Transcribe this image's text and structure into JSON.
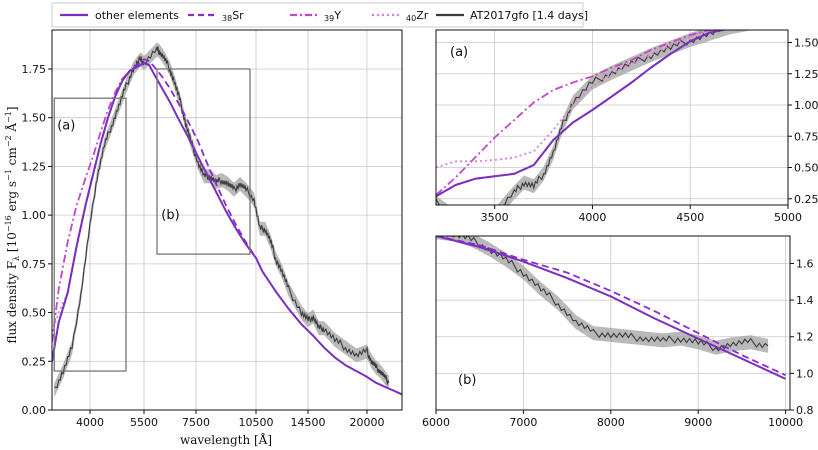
{
  "legend": {
    "entries": [
      {
        "label": "other elements",
        "color": "#7b2fc0",
        "dash": "solid"
      },
      {
        "label": "38Sr",
        "sub": "38",
        "name": "Sr",
        "color": "#8a2bd0",
        "dash": "dashed"
      },
      {
        "label": "39Y",
        "sub": "39",
        "name": "Y",
        "color": "#c147c8",
        "dash": "dashdot"
      },
      {
        "label": "40Zr",
        "sub": "40",
        "name": "Zr",
        "color": "#e07be0",
        "dash": "dotted"
      },
      {
        "label": "AT2017gfo [1.4 days]",
        "color": "#3a3a3a",
        "dash": "solid"
      }
    ]
  },
  "chart_data": [
    {
      "id": "main",
      "type": "line",
      "xlabel": "wavelength [Å]",
      "ylabel": "flux density F_λ [10^-16 erg s^-1 cm^-2 Å^-1]",
      "x_ticks": [
        {
          "label": "4000",
          "wl": 4000
        },
        {
          "label": "5500",
          "wl": 5500
        },
        {
          "label": "7500",
          "wl": 7500
        },
        {
          "label": "10500",
          "wl": 10500
        },
        {
          "label": "14500",
          "wl": 14500
        },
        {
          "label": "20000",
          "wl": 20000
        }
      ],
      "xlim": [
        3150,
        24000
      ],
      "ylim": [
        0.0,
        1.95
      ],
      "y_ticks": [
        "0.00",
        "0.25",
        "0.50",
        "0.75",
        "1.00",
        "1.25",
        "1.50",
        "1.75"
      ],
      "grid": true,
      "annotations": [
        {
          "text": "(a)",
          "x": 3200,
          "y": 1.44
        },
        {
          "text": "(b)",
          "x": 6050,
          "y": 0.98
        }
      ],
      "boxes": [
        {
          "label": "(a)",
          "x": [
            3200,
            5000
          ],
          "y": [
            0.2,
            1.6
          ]
        },
        {
          "label": "(b)",
          "x": [
            6000,
            10200
          ],
          "y": [
            0.8,
            1.75
          ]
        }
      ],
      "series": [
        {
          "name": "other elements",
          "x": [
            3150,
            3300,
            3500,
            3700,
            3900,
            4100,
            4300,
            4500,
            4700,
            4900,
            5100,
            5300,
            5500,
            5700,
            5900,
            6200,
            6500,
            6800,
            7200,
            7600,
            8000,
            8500,
            9000,
            9500,
            10000,
            10500,
            11000,
            12000,
            13000,
            14000,
            15000,
            16000,
            17000,
            18000,
            19000,
            20000,
            21000,
            22000,
            23000,
            24000
          ],
          "y": [
            0.25,
            0.45,
            0.6,
            0.84,
            1.05,
            1.22,
            1.37,
            1.5,
            1.61,
            1.69,
            1.74,
            1.76,
            1.78,
            1.77,
            1.72,
            1.65,
            1.58,
            1.5,
            1.4,
            1.3,
            1.22,
            1.12,
            1.02,
            0.93,
            0.85,
            0.78,
            0.71,
            0.61,
            0.52,
            0.44,
            0.38,
            0.32,
            0.27,
            0.23,
            0.2,
            0.17,
            0.14,
            0.12,
            0.1,
            0.08
          ]
        },
        {
          "name": "38Sr",
          "x": [
            3150,
            3300,
            3500,
            3700,
            3900,
            4100,
            4300,
            4500,
            4700,
            4900,
            5100,
            5300,
            5500,
            5700,
            5900,
            6200,
            6500,
            6800,
            7200,
            7600,
            8000,
            8500,
            9000,
            9500,
            10000,
            10500
          ],
          "y": [
            0.25,
            0.45,
            0.6,
            0.84,
            1.05,
            1.22,
            1.37,
            1.5,
            1.61,
            1.69,
            1.74,
            1.77,
            1.8,
            1.79,
            1.76,
            1.71,
            1.65,
            1.58,
            1.48,
            1.38,
            1.28,
            1.16,
            1.05,
            0.95,
            0.86,
            0.78
          ]
        },
        {
          "name": "39Y",
          "x": [
            3150,
            3300,
            3500,
            3700,
            3900,
            4100,
            4300,
            4500,
            4700,
            4900,
            5100,
            5300,
            5500,
            5700
          ],
          "y": [
            0.35,
            0.62,
            0.86,
            1.05,
            1.19,
            1.31,
            1.43,
            1.54,
            1.63,
            1.7,
            1.74,
            1.76,
            1.78,
            1.77
          ]
        },
        {
          "name": "40Zr",
          "x": [
            3150,
            3300,
            3500,
            3700,
            3900,
            4100,
            4300,
            4500,
            4700,
            4900,
            5100
          ],
          "y": [
            0.4,
            0.5,
            0.6,
            0.84,
            1.05,
            1.22,
            1.37,
            1.5,
            1.61,
            1.69,
            1.74
          ]
        },
        {
          "name": "AT2017gfo [1.4 days]",
          "x": [
            3200,
            3400,
            3600,
            3800,
            4000,
            4200,
            4400,
            4600,
            4800,
            5000,
            5200,
            5400,
            5500,
            6000,
            6100,
            6300,
            6500,
            6700,
            6900,
            7100,
            7300,
            7600,
            7900,
            8200,
            8500,
            8800,
            9100,
            9400,
            9700,
            10000,
            10400,
            10800,
            11200,
            11600,
            12000,
            12500,
            13000,
            14000,
            14500,
            15000,
            15500,
            16000,
            17000,
            18000,
            19000,
            20000,
            20500,
            21000,
            21500,
            22000,
            22500
          ],
          "y": [
            0.1,
            0.2,
            0.32,
            0.6,
            0.95,
            1.2,
            1.36,
            1.46,
            1.56,
            1.66,
            1.75,
            1.8,
            1.78,
            1.85,
            1.84,
            1.8,
            1.75,
            1.67,
            1.58,
            1.47,
            1.38,
            1.27,
            1.2,
            1.2,
            1.17,
            1.18,
            1.16,
            1.13,
            1.16,
            1.13,
            1.08,
            0.93,
            0.93,
            0.87,
            0.78,
            0.71,
            0.62,
            0.5,
            0.46,
            0.48,
            0.42,
            0.42,
            0.36,
            0.32,
            0.28,
            0.3,
            0.25,
            0.22,
            0.2,
            0.17,
            0.14
          ]
        }
      ]
    },
    {
      "id": "inset-a",
      "type": "line",
      "panel_label": "(a)",
      "xlim": [
        3200,
        5000
      ],
      "ylim": [
        0.2,
        1.6
      ],
      "x_ticks": [
        "3500",
        "4000",
        "4500",
        "5000"
      ],
      "y_ticks": [
        "0.25",
        "0.50",
        "0.75",
        "1.00",
        "1.25",
        "1.50"
      ],
      "y_axis_side": "right",
      "grid": true,
      "series": [
        {
          "name": "other elements",
          "x": [
            3200,
            3300,
            3400,
            3500,
            3600,
            3700,
            3800,
            3900,
            4000,
            4100,
            4200,
            4300,
            4400,
            4500,
            4600,
            4700,
            4800
          ],
          "y": [
            0.27,
            0.36,
            0.41,
            0.43,
            0.45,
            0.52,
            0.72,
            0.86,
            0.96,
            1.07,
            1.18,
            1.3,
            1.41,
            1.51,
            1.58,
            1.61,
            1.63
          ]
        },
        {
          "name": "38Sr",
          "x": [
            3200,
            3300,
            3400,
            3500,
            3600,
            3700,
            3800,
            3900,
            4000,
            4100,
            4200,
            4300,
            4400,
            4500,
            4600,
            4700,
            4800
          ],
          "y": [
            0.27,
            0.36,
            0.41,
            0.43,
            0.45,
            0.52,
            0.72,
            0.86,
            0.96,
            1.07,
            1.18,
            1.3,
            1.41,
            1.51,
            1.58,
            1.61,
            1.63
          ]
        },
        {
          "name": "39Y",
          "x": [
            3200,
            3300,
            3400,
            3500,
            3600,
            3700,
            3800,
            3900,
            4000,
            4100,
            4200,
            4300,
            4400,
            4500,
            4600,
            4700
          ],
          "y": [
            0.28,
            0.42,
            0.58,
            0.74,
            0.88,
            1.02,
            1.12,
            1.18,
            1.23,
            1.3,
            1.36,
            1.44,
            1.5,
            1.56,
            1.6,
            1.62
          ]
        },
        {
          "name": "40Zr",
          "x": [
            3200,
            3300,
            3400,
            3500,
            3600,
            3700,
            3800,
            3900,
            4000,
            4100,
            4200,
            4300,
            4400,
            4500,
            4600
          ],
          "y": [
            0.5,
            0.55,
            0.55,
            0.56,
            0.58,
            0.63,
            0.8,
            1.0,
            1.15,
            1.25,
            1.33,
            1.4,
            1.48,
            1.55,
            1.6
          ]
        },
        {
          "name": "AT2017gfo [1.4 days]",
          "x": [
            3200,
            3300,
            3400,
            3500,
            3600,
            3650,
            3700,
            3750,
            3800,
            3850,
            3900,
            4000,
            4100,
            4200,
            4300,
            4400,
            4500,
            4600,
            4700,
            4800
          ],
          "y": [
            0.22,
            0.1,
            0.0,
            0.12,
            0.3,
            0.38,
            0.35,
            0.45,
            0.62,
            0.85,
            1.02,
            1.18,
            1.26,
            1.33,
            1.4,
            1.46,
            1.52,
            1.57,
            1.62,
            1.65
          ]
        }
      ]
    },
    {
      "id": "inset-b",
      "type": "line",
      "panel_label": "(b)",
      "xlim": [
        6000,
        10050
      ],
      "ylim": [
        0.8,
        1.75
      ],
      "x_ticks": [
        "6000",
        "7000",
        "8000",
        "9000",
        "10000"
      ],
      "y_ticks": [
        "0.8",
        "1.0",
        "1.2",
        "1.4",
        "1.6"
      ],
      "y_axis_side": "right",
      "grid": true,
      "series": [
        {
          "name": "other elements",
          "x": [
            6000,
            6500,
            7000,
            7500,
            8000,
            8500,
            9000,
            9500,
            10000
          ],
          "y": [
            1.75,
            1.69,
            1.61,
            1.52,
            1.42,
            1.3,
            1.19,
            1.08,
            0.97
          ]
        },
        {
          "name": "38Sr",
          "x": [
            6000,
            6500,
            7000,
            7500,
            8000,
            8500,
            9000,
            9500,
            10000
          ],
          "y": [
            1.75,
            1.7,
            1.62,
            1.55,
            1.45,
            1.34,
            1.22,
            1.1,
            0.99
          ]
        },
        {
          "name": "AT2017gfo [1.4 days]",
          "x": [
            6000,
            6200,
            6400,
            6600,
            6800,
            7000,
            7200,
            7400,
            7600,
            7800,
            8000,
            8200,
            8400,
            8600,
            8800,
            9000,
            9200,
            9400,
            9600,
            9800
          ],
          "y": [
            1.77,
            1.76,
            1.73,
            1.68,
            1.62,
            1.55,
            1.46,
            1.38,
            1.28,
            1.22,
            1.21,
            1.2,
            1.19,
            1.18,
            1.19,
            1.17,
            1.14,
            1.16,
            1.17,
            1.15
          ]
        }
      ]
    }
  ]
}
